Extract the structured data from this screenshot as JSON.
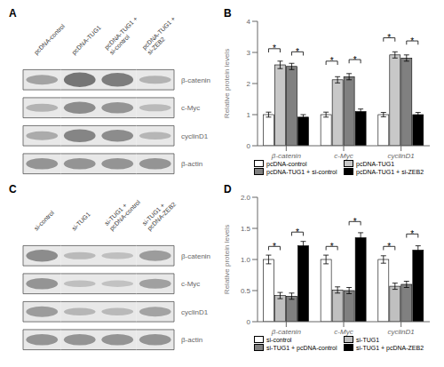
{
  "chart_data": [
    {
      "type": "heatmap",
      "title": "A",
      "categories": [
        "pcDNA-control",
        "pcDNA-TUG1",
        "pcDNA-TUG1 +\nsi-control",
        "pcDNA-TUG1 +\nsi-ZEB2"
      ],
      "rows": [
        "β-catenin",
        "c-Myc",
        "cyclinD1",
        "β-actin"
      ],
      "cells": [
        [
          0.6,
          0.9,
          0.85,
          0.5
        ],
        [
          0.5,
          0.75,
          0.7,
          0.45
        ],
        [
          0.55,
          0.8,
          0.75,
          0.48
        ],
        [
          0.7,
          0.7,
          0.7,
          0.7
        ]
      ]
    },
    {
      "type": "bar",
      "title": "B",
      "categories": [
        "β-catenin",
        "c-Myc",
        "cyclinD1"
      ],
      "series": [
        {
          "name": "pcDNA-control",
          "color": "#ffffff",
          "values": [
            1.0,
            1.0,
            1.0
          ],
          "errors": [
            0.08,
            0.08,
            0.07
          ]
        },
        {
          "name": "pcDNA-TUG1",
          "color": "#c8c8c8",
          "values": [
            2.6,
            2.12,
            2.92
          ],
          "errors": [
            0.12,
            0.1,
            0.1
          ]
        },
        {
          "name": "pcDNA-TUG1 + si-control",
          "color": "#808080",
          "values": [
            2.55,
            2.22,
            2.82
          ],
          "errors": [
            0.1,
            0.1,
            0.1
          ]
        },
        {
          "name": "pcDNA-TUG1 + si-ZEB2",
          "color": "#000000",
          "values": [
            0.92,
            1.1,
            1.0
          ],
          "errors": [
            0.08,
            0.08,
            0.07
          ]
        }
      ],
      "ylabel": "Relative protein levels",
      "ylim": [
        0,
        4.0
      ],
      "yticks": [
        0,
        1,
        2,
        3,
        4
      ],
      "grid": false,
      "legend": "bottom",
      "annotations": [
        {
          "text": "*",
          "category": 0,
          "series": [
            0,
            1
          ],
          "y": 3.0
        },
        {
          "text": "*",
          "category": 0,
          "series": [
            2,
            3
          ],
          "y": 2.9
        },
        {
          "text": "*",
          "category": 1,
          "series": [
            0,
            1
          ],
          "y": 2.6
        },
        {
          "text": "*",
          "category": 1,
          "series": [
            2,
            3
          ],
          "y": 2.65
        },
        {
          "text": "*",
          "category": 2,
          "series": [
            0,
            1
          ],
          "y": 3.35
        },
        {
          "text": "*",
          "category": 2,
          "series": [
            2,
            3
          ],
          "y": 3.25
        }
      ]
    },
    {
      "type": "heatmap",
      "title": "C",
      "categories": [
        "si-control",
        "si-TUG1",
        "si-TUG1 +\npcDNA-control",
        "si-TUG1 +\npcDNA-ZEB2"
      ],
      "rows": [
        "β-catenin",
        "c-Myc",
        "cyclinD1",
        "β-actin"
      ],
      "cells": [
        [
          0.75,
          0.45,
          0.42,
          0.65
        ],
        [
          0.7,
          0.42,
          0.4,
          0.62
        ],
        [
          0.65,
          0.48,
          0.46,
          0.6
        ],
        [
          0.7,
          0.7,
          0.7,
          0.7
        ]
      ]
    },
    {
      "type": "bar",
      "title": "D",
      "categories": [
        "β-catenin",
        "c-Myc",
        "cyclinD1"
      ],
      "series": [
        {
          "name": "si-control",
          "color": "#ffffff",
          "values": [
            1.0,
            1.0,
            1.0
          ],
          "errors": [
            0.07,
            0.07,
            0.06
          ]
        },
        {
          "name": "si-TUG1",
          "color": "#c0c0c0",
          "values": [
            0.42,
            0.51,
            0.57
          ],
          "errors": [
            0.05,
            0.05,
            0.05
          ]
        },
        {
          "name": "si-TUG1 + pcDNA-control",
          "color": "#808080",
          "values": [
            0.41,
            0.5,
            0.6
          ],
          "errors": [
            0.05,
            0.05,
            0.05
          ]
        },
        {
          "name": "si-TUG1 + pcDNA-ZEB2",
          "color": "#000000",
          "values": [
            1.22,
            1.35,
            1.15
          ],
          "errors": [
            0.07,
            0.08,
            0.07
          ]
        }
      ],
      "ylabel": "Relative protein levels",
      "ylim": [
        0,
        2.0
      ],
      "yticks": [
        0,
        0.5,
        {
          "value": 1,
          "label": "1.0"
        },
        1.5,
        {
          "value": 2,
          "label": "2.0"
        }
      ],
      "grid": false,
      "legend": "bottom",
      "annotations": [
        {
          "text": "*",
          "category": 0,
          "series": [
            0,
            1
          ],
          "y": 1.15
        },
        {
          "text": "*",
          "category": 0,
          "series": [
            2,
            3
          ],
          "y": 1.38
        },
        {
          "text": "*",
          "category": 1,
          "series": [
            0,
            1
          ],
          "y": 1.15
        },
        {
          "text": "*",
          "category": 1,
          "series": [
            2,
            3
          ],
          "y": 1.55
        },
        {
          "text": "*",
          "category": 2,
          "series": [
            0,
            1
          ],
          "y": 1.15
        },
        {
          "text": "*",
          "category": 2,
          "series": [
            2,
            3
          ],
          "y": 1.35
        }
      ]
    }
  ]
}
